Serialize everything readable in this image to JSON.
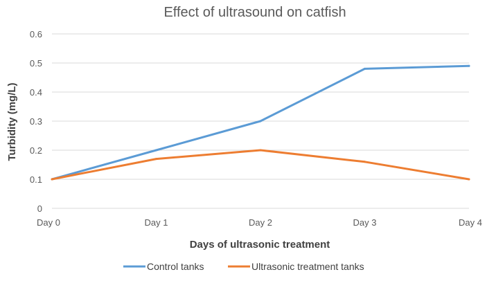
{
  "chart_data": {
    "type": "line",
    "title": "Effect of ultrasound on catfish",
    "xlabel": "Days of ultrasonic treatment",
    "ylabel": "Turbidity (mg/L)",
    "categories": [
      "Day 0",
      "Day 1",
      "Day 2",
      "Day 3",
      "Day 4"
    ],
    "ylim": [
      0,
      0.6
    ],
    "yticks": [
      "0",
      "0.1",
      "0.2",
      "0.3",
      "0.4",
      "0.5",
      "0.6"
    ],
    "grid": true,
    "legend_position": "bottom",
    "series": [
      {
        "name": "Control tanks",
        "color": "#5b9bd5",
        "values": [
          0.1,
          0.2,
          0.3,
          0.48,
          0.49
        ]
      },
      {
        "name": "Ultrasonic treatment tanks",
        "color": "#ed7d31",
        "values": [
          0.1,
          0.17,
          0.2,
          0.16,
          0.1
        ]
      }
    ]
  }
}
